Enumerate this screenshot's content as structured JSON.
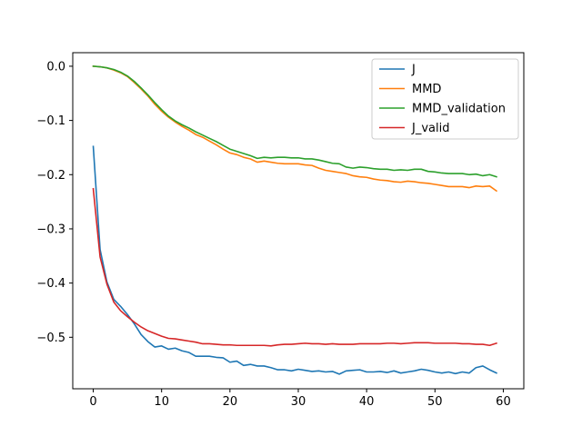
{
  "chart_data": {
    "type": "line",
    "title": "",
    "xlabel": "",
    "ylabel": "",
    "xlim": [
      -3,
      63
    ],
    "ylim": [
      -0.595,
      0.025
    ],
    "xticks": [
      0,
      10,
      20,
      30,
      40,
      50,
      60
    ],
    "yticks": [
      0.0,
      -0.1,
      -0.2,
      -0.3,
      -0.4,
      -0.5
    ],
    "ytick_labels": [
      "0.0",
      "−0.1",
      "−0.2",
      "−0.3",
      "−0.4",
      "−0.5"
    ],
    "grid": false,
    "legend_position": "top-right",
    "x": [
      0,
      1,
      2,
      3,
      4,
      5,
      6,
      7,
      8,
      9,
      10,
      11,
      12,
      13,
      14,
      15,
      16,
      17,
      18,
      19,
      20,
      21,
      22,
      23,
      24,
      25,
      26,
      27,
      28,
      29,
      30,
      31,
      32,
      33,
      34,
      35,
      36,
      37,
      38,
      39,
      40,
      41,
      42,
      43,
      44,
      45,
      46,
      47,
      48,
      49,
      50,
      51,
      52,
      53,
      54,
      55,
      56,
      57,
      58,
      59
    ],
    "series": [
      {
        "name": "J",
        "color": "#1f77b4",
        "values": [
          -0.148,
          -0.338,
          -0.398,
          -0.43,
          -0.443,
          -0.458,
          -0.475,
          -0.495,
          -0.508,
          -0.518,
          -0.516,
          -0.522,
          -0.52,
          -0.525,
          -0.528,
          -0.535,
          -0.535,
          -0.535,
          -0.537,
          -0.538,
          -0.546,
          -0.544,
          -0.552,
          -0.55,
          -0.553,
          -0.553,
          -0.556,
          -0.56,
          -0.56,
          -0.562,
          -0.559,
          -0.561,
          -0.563,
          -0.562,
          -0.564,
          -0.563,
          -0.568,
          -0.562,
          -0.561,
          -0.56,
          -0.564,
          -0.564,
          -0.563,
          -0.565,
          -0.562,
          -0.566,
          -0.564,
          -0.562,
          -0.559,
          -0.561,
          -0.564,
          -0.566,
          -0.564,
          -0.567,
          -0.564,
          -0.566,
          -0.556,
          -0.553,
          -0.56,
          -0.566
        ]
      },
      {
        "name": "MMD",
        "color": "#ff7f0e",
        "values": [
          0.0,
          -0.001,
          -0.003,
          -0.007,
          -0.012,
          -0.019,
          -0.03,
          -0.042,
          -0.055,
          -0.07,
          -0.083,
          -0.094,
          -0.103,
          -0.111,
          -0.118,
          -0.126,
          -0.131,
          -0.138,
          -0.145,
          -0.153,
          -0.16,
          -0.163,
          -0.168,
          -0.171,
          -0.177,
          -0.175,
          -0.177,
          -0.179,
          -0.18,
          -0.18,
          -0.18,
          -0.182,
          -0.183,
          -0.188,
          -0.192,
          -0.194,
          -0.196,
          -0.198,
          -0.202,
          -0.204,
          -0.205,
          -0.208,
          -0.21,
          -0.211,
          -0.213,
          -0.214,
          -0.212,
          -0.213,
          -0.215,
          -0.216,
          -0.218,
          -0.22,
          -0.222,
          -0.222,
          -0.222,
          -0.224,
          -0.221,
          -0.222,
          -0.221,
          -0.23
        ]
      },
      {
        "name": "MMD_validation",
        "color": "#2ca02c",
        "values": [
          0.0,
          -0.001,
          -0.003,
          -0.006,
          -0.011,
          -0.018,
          -0.028,
          -0.04,
          -0.053,
          -0.067,
          -0.08,
          -0.092,
          -0.101,
          -0.108,
          -0.114,
          -0.121,
          -0.127,
          -0.133,
          -0.139,
          -0.146,
          -0.153,
          -0.157,
          -0.161,
          -0.165,
          -0.17,
          -0.168,
          -0.169,
          -0.168,
          -0.168,
          -0.169,
          -0.169,
          -0.171,
          -0.171,
          -0.173,
          -0.176,
          -0.179,
          -0.18,
          -0.186,
          -0.188,
          -0.186,
          -0.187,
          -0.189,
          -0.19,
          -0.19,
          -0.192,
          -0.191,
          -0.192,
          -0.19,
          -0.19,
          -0.194,
          -0.195,
          -0.197,
          -0.198,
          -0.198,
          -0.198,
          -0.2,
          -0.199,
          -0.202,
          -0.2,
          -0.204
        ]
      },
      {
        "name": "J_valid",
        "color": "#d62728",
        "values": [
          -0.226,
          -0.352,
          -0.402,
          -0.435,
          -0.451,
          -0.462,
          -0.472,
          -0.481,
          -0.488,
          -0.493,
          -0.498,
          -0.502,
          -0.503,
          -0.505,
          -0.507,
          -0.509,
          -0.512,
          -0.512,
          -0.513,
          -0.514,
          -0.514,
          -0.515,
          -0.515,
          -0.515,
          -0.515,
          -0.515,
          -0.516,
          -0.514,
          -0.513,
          -0.513,
          -0.512,
          -0.511,
          -0.512,
          -0.512,
          -0.513,
          -0.512,
          -0.513,
          -0.513,
          -0.513,
          -0.512,
          -0.512,
          -0.512,
          -0.512,
          -0.511,
          -0.511,
          -0.512,
          -0.511,
          -0.51,
          -0.51,
          -0.51,
          -0.511,
          -0.511,
          -0.511,
          -0.511,
          -0.512,
          -0.512,
          -0.513,
          -0.513,
          -0.515,
          -0.511
        ]
      }
    ]
  }
}
